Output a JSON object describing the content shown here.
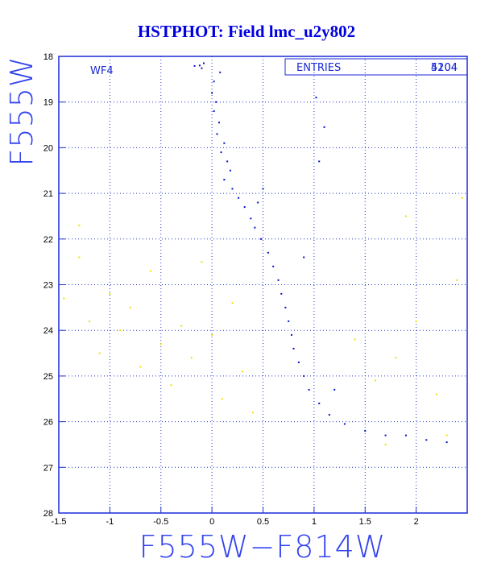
{
  "chart_data": {
    "type": "scatter",
    "title": "HSTPHOT: Field lmc_u2y802",
    "xlabel": "F555W−F814W",
    "ylabel": "F555W",
    "panel_label": "WF4",
    "stats_box": {
      "label": "ENTRIES",
      "values": [
        "4204",
        "5104"
      ]
    },
    "xlim": [
      -1.5,
      2.5
    ],
    "ylim": [
      28,
      18
    ],
    "y_inverted": true,
    "grid": true,
    "x_ticks": [
      "-1.5",
      "-1",
      "-0.5",
      "0",
      "0.5",
      "1",
      "1.5",
      "2"
    ],
    "y_ticks": [
      "18",
      "19",
      "20",
      "21",
      "22",
      "23",
      "24",
      "25",
      "26",
      "27",
      "28"
    ],
    "colors": {
      "title": "#0000e0",
      "axis_label": "#3344ee",
      "grid": "#2233cc",
      "series_main": "#0011cc",
      "series_secondary": "#f0e000"
    },
    "series": [
      {
        "color": "#0011cc",
        "points": [
          [
            -0.17,
            18.21
          ],
          [
            -0.12,
            18.2
          ],
          [
            -0.1,
            18.26
          ],
          [
            -0.08,
            18.15
          ],
          [
            0.08,
            18.35
          ],
          [
            0.02,
            18.55
          ],
          [
            0.0,
            18.8
          ],
          [
            0.04,
            19.0
          ],
          [
            0.02,
            19.2
          ],
          [
            0.07,
            19.45
          ],
          [
            0.05,
            19.7
          ],
          [
            0.12,
            19.9
          ],
          [
            0.09,
            20.1
          ],
          [
            0.15,
            20.3
          ],
          [
            0.18,
            20.5
          ],
          [
            0.12,
            20.7
          ],
          [
            0.2,
            20.9
          ],
          [
            0.26,
            21.1
          ],
          [
            0.32,
            21.3
          ],
          [
            0.38,
            21.55
          ],
          [
            0.42,
            21.75
          ],
          [
            0.48,
            22.0
          ],
          [
            0.55,
            22.3
          ],
          [
            0.6,
            22.6
          ],
          [
            0.65,
            22.9
          ],
          [
            0.68,
            23.2
          ],
          [
            0.72,
            23.5
          ],
          [
            0.75,
            23.8
          ],
          [
            0.78,
            24.1
          ],
          [
            0.8,
            24.4
          ],
          [
            0.85,
            24.7
          ],
          [
            0.9,
            25.0
          ],
          [
            0.95,
            25.3
          ],
          [
            1.05,
            25.6
          ],
          [
            1.15,
            25.85
          ],
          [
            1.3,
            26.05
          ],
          [
            1.5,
            26.2
          ],
          [
            1.7,
            26.3
          ],
          [
            1.9,
            26.3
          ],
          [
            2.1,
            26.4
          ],
          [
            2.3,
            26.45
          ],
          [
            1.02,
            18.9
          ],
          [
            1.1,
            19.55
          ],
          [
            1.05,
            20.3
          ],
          [
            0.5,
            20.9
          ],
          [
            0.45,
            21.2
          ],
          [
            0.9,
            22.4
          ],
          [
            1.2,
            25.3
          ]
        ]
      },
      {
        "color": "#f0e000",
        "points": [
          [
            -1.45,
            23.3
          ],
          [
            -1.3,
            22.4
          ],
          [
            -1.2,
            23.8
          ],
          [
            -1.1,
            24.5
          ],
          [
            -1.0,
            23.2
          ],
          [
            -0.9,
            24.0
          ],
          [
            -0.8,
            23.5
          ],
          [
            -0.7,
            24.8
          ],
          [
            -0.6,
            22.7
          ],
          [
            -0.5,
            24.3
          ],
          [
            -0.4,
            25.2
          ],
          [
            -0.3,
            23.9
          ],
          [
            -0.2,
            24.6
          ],
          [
            -0.1,
            22.5
          ],
          [
            0.0,
            24.1
          ],
          [
            0.1,
            25.5
          ],
          [
            0.2,
            23.4
          ],
          [
            0.3,
            24.9
          ],
          [
            0.4,
            25.8
          ],
          [
            1.4,
            24.2
          ],
          [
            1.6,
            25.1
          ],
          [
            1.8,
            24.6
          ],
          [
            2.0,
            23.8
          ],
          [
            2.2,
            25.4
          ],
          [
            2.4,
            22.9
          ],
          [
            1.9,
            21.5
          ],
          [
            2.45,
            21.1
          ],
          [
            2.3,
            26.3
          ],
          [
            1.7,
            26.5
          ],
          [
            -1.3,
            21.7
          ]
        ]
      }
    ]
  }
}
